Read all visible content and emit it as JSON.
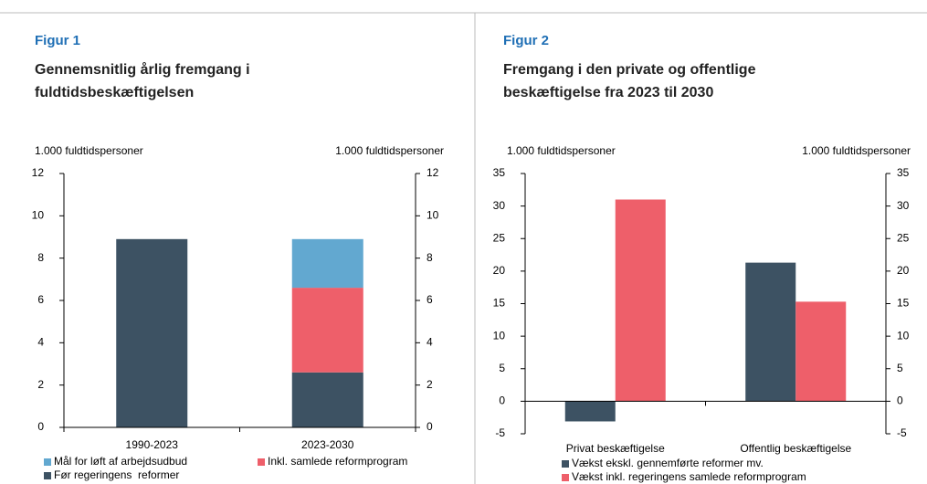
{
  "chart_data": [
    {
      "type": "bar",
      "stacked": true,
      "label": "Figur 1",
      "title": "Gennemsnitlig årlig fremgang i fuldtidsbeskæftigelsen",
      "ylabel": "1.000 fuldtidspersoner",
      "y2label": "1.000 fuldtidspersoner",
      "categories": [
        "1990-2023",
        "2023-2030"
      ],
      "series": [
        {
          "name": "Før regeringens  reformer",
          "color": "#3d5263",
          "values": [
            8.9,
            2.6
          ]
        },
        {
          "name": "Inkl. samlede reformprogram",
          "color": "#ee5f6a",
          "values": [
            null,
            4.0
          ]
        },
        {
          "name": "Mål for løft af arbejdsudbud",
          "color": "#62a8d0",
          "values": [
            null,
            2.3
          ]
        }
      ],
      "legend_order": [
        2,
        1,
        0
      ],
      "ylim": [
        0,
        12
      ],
      "yticks": [
        0,
        2,
        4,
        6,
        8,
        10,
        12
      ],
      "y2lim": [
        0,
        12
      ],
      "y2ticks": [
        0,
        2,
        4,
        6,
        8,
        10,
        12
      ]
    },
    {
      "type": "bar",
      "stacked": false,
      "label": "Figur 2",
      "title": "Fremgang i den private og offentlige beskæftigelse fra 2023 til 2030",
      "ylabel": "1.000 fuldtidspersoner",
      "y2label": "1.000 fuldtidspersoner",
      "categories": [
        "Privat beskæftigelse",
        "Offentlig beskæftigelse"
      ],
      "series": [
        {
          "name": "Vækst ekskl. gennemførte reformer mv.",
          "color": "#3d5263",
          "values": [
            -3.1,
            21.3
          ]
        },
        {
          "name": "Vækst inkl. regeringens samlede reformprogram",
          "color": "#ee5f6a",
          "values": [
            31,
            15.3
          ]
        }
      ],
      "legend_order": [
        0,
        1
      ],
      "ylim": [
        -5,
        35
      ],
      "yticks": [
        -5,
        0,
        5,
        10,
        15,
        20,
        25,
        30,
        35
      ],
      "y2lim": [
        -5,
        35
      ],
      "y2ticks": [
        -5,
        0,
        5,
        10,
        15,
        20,
        25,
        30,
        35
      ]
    }
  ]
}
